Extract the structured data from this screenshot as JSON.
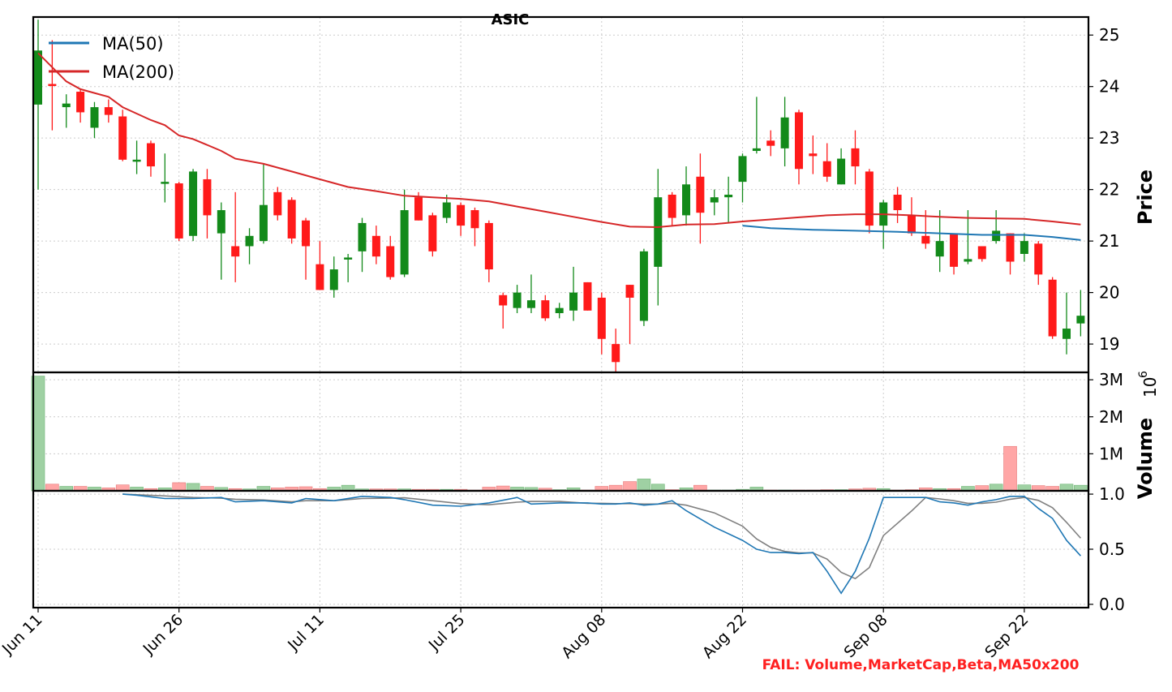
{
  "title": "ASIC",
  "fail_note": "FAIL: Volume,MarketCap,Beta,MA50x200",
  "colors": {
    "up": "#138a1a",
    "down": "#ff1a1a",
    "ma50": "#1f77b4",
    "ma200": "#d62728",
    "vol_up": "#9fd1a3",
    "vol_down": "#ffa6a6",
    "osc_k": "#1f77b4",
    "osc_d": "#808080",
    "fail": "#ff2020"
  },
  "chart_data": {
    "type": "candlestick",
    "x_tick_labels": [
      "Jun 11",
      "Jun 26",
      "Jul 11",
      "Jul 25",
      "Aug 08",
      "Aug 22",
      "Sep 08",
      "Sep 22"
    ],
    "x_tick_index": [
      0,
      10,
      20,
      30,
      40,
      50,
      60,
      70
    ],
    "price_panel": {
      "ylabel": "Price",
      "ylim": [
        18.45,
        25.35
      ],
      "yticks": [
        19,
        20,
        21,
        22,
        23,
        24,
        25
      ],
      "legend": [
        {
          "label": "MA(50)",
          "color": "#1f77b4"
        },
        {
          "label": "MA(200)",
          "color": "#d62728"
        }
      ],
      "legend_position": "top-left",
      "candles": [
        [
          23.65,
          25.3,
          22.0,
          24.7
        ],
        [
          24.05,
          24.9,
          23.15,
          24.02
        ],
        [
          23.6,
          23.85,
          23.2,
          23.67
        ],
        [
          23.9,
          23.95,
          23.3,
          23.5
        ],
        [
          23.2,
          23.7,
          23.0,
          23.6
        ],
        [
          23.6,
          23.75,
          23.3,
          23.45
        ],
        [
          23.42,
          23.55,
          22.55,
          22.58
        ],
        [
          22.58,
          22.95,
          22.3,
          22.58
        ],
        [
          22.9,
          22.95,
          22.25,
          22.45
        ],
        [
          22.15,
          22.7,
          21.75,
          22.15
        ],
        [
          22.12,
          22.15,
          21.0,
          21.05
        ],
        [
          21.1,
          22.4,
          21.0,
          22.35
        ],
        [
          22.2,
          22.4,
          21.05,
          21.5
        ],
        [
          21.15,
          21.75,
          20.25,
          21.6
        ],
        [
          20.9,
          21.95,
          20.2,
          20.7
        ],
        [
          20.9,
          21.25,
          20.55,
          21.1
        ],
        [
          21.0,
          22.5,
          20.95,
          21.7
        ],
        [
          21.95,
          22.05,
          21.4,
          21.5
        ],
        [
          21.8,
          21.85,
          20.95,
          21.05
        ],
        [
          21.4,
          21.45,
          20.25,
          20.9
        ],
        [
          20.55,
          21.0,
          20.05,
          20.05
        ],
        [
          20.05,
          20.7,
          19.9,
          20.45
        ],
        [
          20.65,
          20.75,
          20.2,
          20.68
        ],
        [
          20.8,
          21.45,
          20.4,
          21.35
        ],
        [
          21.1,
          21.3,
          20.55,
          20.7
        ],
        [
          20.9,
          21.1,
          20.25,
          20.3
        ],
        [
          20.35,
          22.0,
          20.3,
          21.6
        ],
        [
          21.85,
          21.95,
          21.4,
          21.4
        ],
        [
          21.5,
          21.55,
          20.7,
          20.8
        ],
        [
          21.45,
          21.9,
          21.35,
          21.75
        ],
        [
          21.7,
          21.75,
          21.1,
          21.3
        ],
        [
          21.6,
          21.65,
          20.9,
          21.25
        ],
        [
          21.35,
          21.4,
          20.2,
          20.45
        ],
        [
          19.95,
          20.0,
          19.3,
          19.75
        ],
        [
          19.7,
          20.15,
          19.6,
          20.0
        ],
        [
          19.7,
          20.35,
          19.6,
          19.85
        ],
        [
          19.85,
          19.95,
          19.45,
          19.5
        ],
        [
          19.6,
          19.8,
          19.5,
          19.7
        ],
        [
          19.65,
          20.5,
          19.45,
          20.0
        ],
        [
          20.2,
          20.2,
          19.65,
          19.65
        ],
        [
          19.9,
          20.0,
          18.8,
          19.1
        ],
        [
          19.0,
          19.3,
          18.45,
          18.65
        ],
        [
          20.15,
          20.15,
          19.0,
          19.9
        ],
        [
          19.45,
          20.85,
          19.35,
          20.8
        ],
        [
          20.5,
          22.4,
          19.75,
          21.85
        ],
        [
          21.9,
          21.95,
          21.3,
          21.45
        ],
        [
          21.5,
          22.45,
          21.3,
          22.1
        ],
        [
          22.25,
          22.7,
          20.95,
          21.55
        ],
        [
          21.75,
          22.0,
          21.5,
          21.85
        ],
        [
          21.85,
          22.25,
          21.35,
          21.9
        ],
        [
          22.15,
          22.7,
          21.75,
          22.65
        ],
        [
          22.75,
          23.8,
          22.7,
          22.8
        ],
        [
          22.95,
          23.15,
          22.65,
          22.85
        ],
        [
          22.8,
          23.8,
          22.45,
          23.4
        ],
        [
          23.5,
          23.55,
          22.1,
          22.4
        ],
        [
          22.7,
          23.05,
          22.3,
          22.65
        ],
        [
          22.55,
          22.9,
          22.15,
          22.25
        ],
        [
          22.1,
          22.8,
          22.1,
          22.6
        ],
        [
          22.8,
          23.15,
          22.1,
          22.45
        ],
        [
          22.35,
          22.4,
          21.15,
          21.3
        ],
        [
          21.3,
          21.8,
          20.85,
          21.75
        ],
        [
          21.9,
          22.05,
          21.35,
          21.6
        ],
        [
          21.5,
          21.85,
          21.1,
          21.15
        ],
        [
          21.1,
          21.6,
          20.85,
          20.95
        ],
        [
          20.7,
          21.6,
          20.4,
          21.0
        ],
        [
          21.15,
          21.15,
          20.35,
          20.5
        ],
        [
          20.6,
          21.6,
          20.55,
          20.65
        ],
        [
          20.9,
          20.9,
          20.6,
          20.65
        ],
        [
          21.0,
          21.6,
          20.95,
          21.2
        ],
        [
          21.15,
          21.15,
          20.35,
          20.6
        ],
        [
          20.75,
          21.15,
          20.6,
          21.0
        ],
        [
          20.95,
          21.0,
          20.15,
          20.35
        ],
        [
          20.25,
          20.3,
          19.1,
          19.15
        ],
        [
          19.1,
          20.0,
          18.8,
          19.3
        ],
        [
          19.4,
          20.05,
          19.15,
          19.55
        ]
      ],
      "ma50": [
        [
          50,
          21.3
        ],
        [
          52,
          21.25
        ],
        [
          55,
          21.22
        ],
        [
          58,
          21.2
        ],
        [
          61,
          21.18
        ],
        [
          64,
          21.15
        ],
        [
          67,
          21.12
        ],
        [
          70,
          21.12
        ],
        [
          72,
          21.08
        ],
        [
          74,
          21.02
        ]
      ],
      "ma200": [
        [
          0,
          24.65
        ],
        [
          2,
          24.1
        ],
        [
          3,
          23.95
        ],
        [
          5,
          23.8
        ],
        [
          6,
          23.6
        ],
        [
          8,
          23.35
        ],
        [
          9,
          23.25
        ],
        [
          10,
          23.05
        ],
        [
          11,
          22.98
        ],
        [
          13,
          22.75
        ],
        [
          14,
          22.6
        ],
        [
          16,
          22.5
        ],
        [
          18,
          22.35
        ],
        [
          20,
          22.2
        ],
        [
          22,
          22.05
        ],
        [
          24,
          21.97
        ],
        [
          26,
          21.88
        ],
        [
          28,
          21.85
        ],
        [
          30,
          21.82
        ],
        [
          32,
          21.77
        ],
        [
          34,
          21.67
        ],
        [
          36,
          21.57
        ],
        [
          38,
          21.47
        ],
        [
          40,
          21.37
        ],
        [
          42,
          21.28
        ],
        [
          44,
          21.27
        ],
        [
          46,
          21.32
        ],
        [
          48,
          21.33
        ],
        [
          50,
          21.38
        ],
        [
          52,
          21.42
        ],
        [
          54,
          21.46
        ],
        [
          56,
          21.5
        ],
        [
          58,
          21.52
        ],
        [
          60,
          21.52
        ],
        [
          62,
          21.5
        ],
        [
          64,
          21.47
        ],
        [
          66,
          21.45
        ],
        [
          68,
          21.44
        ],
        [
          70,
          21.43
        ],
        [
          72,
          21.38
        ],
        [
          74,
          21.32
        ]
      ]
    },
    "volume_panel": {
      "ylabel": "Volume",
      "scale_label": "10",
      "scale_exponent": "6",
      "ylim": [
        0,
        3.2
      ],
      "yticks": [
        1,
        2,
        3
      ],
      "ytick_labels": [
        "1M",
        "2M",
        "3M"
      ],
      "values": [
        3.1,
        0.18,
        0.12,
        0.12,
        0.1,
        0.08,
        0.16,
        0.1,
        0.06,
        0.08,
        0.22,
        0.2,
        0.12,
        0.09,
        0.06,
        0.05,
        0.12,
        0.08,
        0.1,
        0.11,
        0.06,
        0.1,
        0.15,
        0.05,
        0.05,
        0.05,
        0.05,
        0.04,
        0.04,
        0.04,
        0.04,
        0.02,
        0.1,
        0.13,
        0.1,
        0.09,
        0.07,
        0.03,
        0.08,
        0.02,
        0.12,
        0.15,
        0.25,
        0.32,
        0.18,
        0.03,
        0.08,
        0.15,
        0.02,
        0.02,
        0.04,
        0.1,
        0.02,
        0.02,
        0.02,
        0.02,
        0.03,
        0.03,
        0.05,
        0.07,
        0.06,
        0.02,
        0.03,
        0.08,
        0.06,
        0.06,
        0.12,
        0.14,
        0.18,
        1.2,
        0.16,
        0.14,
        0.12,
        0.18,
        0.15
      ]
    },
    "oscillator_panel": {
      "ylim": [
        -0.03,
        1.03
      ],
      "yticks": [
        0.0,
        0.5,
        1.0
      ],
      "ytick_labels": [
        "0.0",
        "0.5",
        "1.0"
      ],
      "k": [
        [
          6,
          1.0
        ],
        [
          7,
          0.99
        ],
        [
          9,
          0.96
        ],
        [
          11,
          0.96
        ],
        [
          13,
          0.97
        ],
        [
          14,
          0.93
        ],
        [
          16,
          0.94
        ],
        [
          18,
          0.92
        ],
        [
          19,
          0.96
        ],
        [
          21,
          0.94
        ],
        [
          23,
          0.98
        ],
        [
          25,
          0.97
        ],
        [
          26,
          0.95
        ],
        [
          28,
          0.9
        ],
        [
          30,
          0.89
        ],
        [
          32,
          0.92
        ],
        [
          34,
          0.97
        ],
        [
          35,
          0.91
        ],
        [
          37,
          0.92
        ],
        [
          39,
          0.92
        ],
        [
          40,
          0.91
        ],
        [
          41,
          0.91
        ],
        [
          42,
          0.92
        ],
        [
          43,
          0.9
        ],
        [
          44,
          0.91
        ],
        [
          45,
          0.94
        ],
        [
          46,
          0.85
        ],
        [
          48,
          0.7
        ],
        [
          50,
          0.58
        ],
        [
          51,
          0.5
        ],
        [
          52,
          0.47
        ],
        [
          53,
          0.47
        ],
        [
          54,
          0.46
        ],
        [
          55,
          0.47
        ],
        [
          56,
          0.3
        ],
        [
          57,
          0.1
        ],
        [
          58,
          0.3
        ],
        [
          59,
          0.6
        ],
        [
          60,
          0.97
        ],
        [
          62,
          0.97
        ],
        [
          63,
          0.97
        ],
        [
          64,
          0.93
        ],
        [
          65,
          0.92
        ],
        [
          66,
          0.9
        ],
        [
          67,
          0.93
        ],
        [
          68,
          0.95
        ],
        [
          69,
          0.98
        ],
        [
          70,
          0.98
        ],
        [
          71,
          0.87
        ],
        [
          72,
          0.78
        ],
        [
          73,
          0.58
        ],
        [
          74,
          0.44
        ]
      ]
    }
  }
}
